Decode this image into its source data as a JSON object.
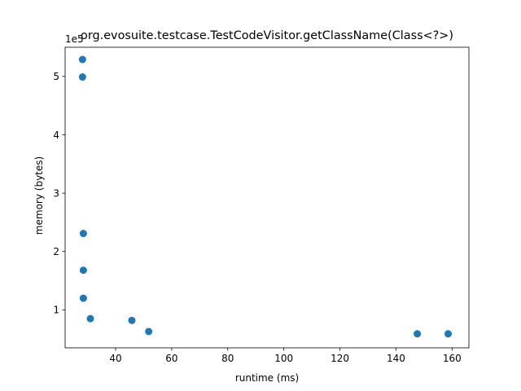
{
  "chart_data": {
    "type": "scatter",
    "title": "org.evosuite.testcase.TestCodeVisitor.getClassName(Class<?>)",
    "xlabel": "runtime (ms)",
    "ylabel": "memory (bytes)",
    "y_offset_label": "1e5",
    "xlim": [
      22,
      166
    ],
    "ylim": [
      0.35,
      5.5
    ],
    "x_ticks": [
      40,
      60,
      80,
      100,
      120,
      140,
      160
    ],
    "x_tick_labels": [
      "40",
      "60",
      "80",
      "100",
      "120",
      "140",
      "160"
    ],
    "y_ticks": [
      1,
      2,
      3,
      4,
      5
    ],
    "y_tick_labels": [
      "1",
      "2",
      "3",
      "4",
      "5"
    ],
    "grid": false,
    "marker_color": "#1f77b4",
    "points": [
      {
        "x": 28.2,
        "y": 5.29
      },
      {
        "x": 28.2,
        "y": 4.99
      },
      {
        "x": 28.5,
        "y": 2.31
      },
      {
        "x": 28.5,
        "y": 1.68
      },
      {
        "x": 28.5,
        "y": 1.2
      },
      {
        "x": 31.0,
        "y": 0.85
      },
      {
        "x": 45.8,
        "y": 0.82
      },
      {
        "x": 51.8,
        "y": 0.63
      },
      {
        "x": 147.6,
        "y": 0.59
      },
      {
        "x": 158.6,
        "y": 0.59
      }
    ]
  }
}
